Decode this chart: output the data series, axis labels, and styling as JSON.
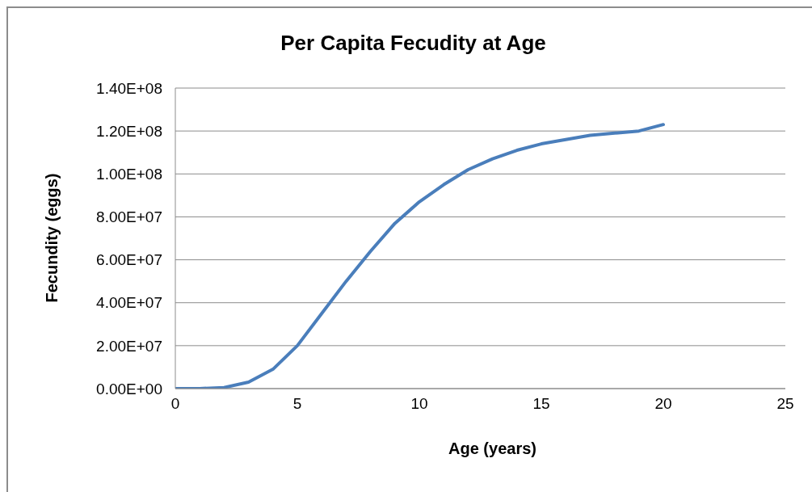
{
  "chart_data": {
    "type": "line",
    "title": "Per Capita Fecudity at Age",
    "xlabel": "Age (years)",
    "ylabel": "Fecundity (eggs)",
    "x": [
      0,
      1,
      2,
      3,
      4,
      5,
      6,
      7,
      8,
      9,
      10,
      11,
      12,
      13,
      14,
      15,
      16,
      17,
      18,
      19,
      20
    ],
    "values": [
      0,
      0,
      500000,
      3000000,
      9000000,
      20000000,
      35000000,
      50000000,
      64000000,
      77000000,
      87000000,
      95000000,
      102000000,
      107000000,
      111000000,
      114000000,
      116000000,
      118000000,
      119000000,
      120000000,
      123000000
    ],
    "color": "#4a7ebb",
    "xlim": [
      0,
      25
    ],
    "xticks": [
      0,
      5,
      10,
      15,
      20,
      25
    ],
    "ylim": [
      0,
      140000000
    ],
    "yticks": [
      {
        "value": 0,
        "label": "0.00E+00"
      },
      {
        "value": 20000000,
        "label": "2.00E+07"
      },
      {
        "value": 40000000,
        "label": "4.00E+07"
      },
      {
        "value": 60000000,
        "label": "6.00E+07"
      },
      {
        "value": 80000000,
        "label": "8.00E+07"
      },
      {
        "value": 100000000,
        "label": "1.00E+08"
      },
      {
        "value": 120000000,
        "label": "1.20E+08"
      },
      {
        "value": 140000000,
        "label": "1.40E+08"
      }
    ],
    "grid": "y"
  }
}
